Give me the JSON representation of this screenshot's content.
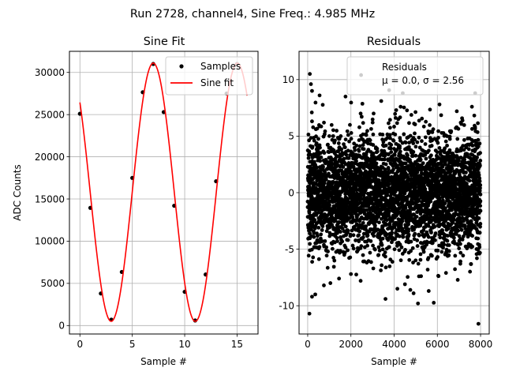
{
  "figure": {
    "suptitle": "Run 2728, channel4, Sine Freq.: 4.985 MHz"
  },
  "chart_data": [
    {
      "type": "scatter",
      "title": "Sine Fit",
      "xlabel": "Sample #",
      "ylabel": "ADC Counts",
      "xlim": [
        -1.0,
        17.0
      ],
      "ylim": [
        -1000,
        32500
      ],
      "xticks": [
        0,
        5,
        10,
        15
      ],
      "yticks": [
        0,
        5000,
        10000,
        15000,
        20000,
        25000,
        30000
      ],
      "grid": true,
      "legend": {
        "placement": "top-right",
        "entries": [
          "Samples",
          "Sine fit"
        ]
      },
      "series": [
        {
          "name": "Samples",
          "kind": "points",
          "color": "#000000",
          "x": [
            0,
            1,
            2,
            3,
            4,
            5,
            6,
            7,
            8,
            9,
            10,
            11,
            12,
            13,
            14,
            15
          ],
          "y": [
            25100,
            13950,
            3800,
            700,
            6350,
            17500,
            27650,
            31000,
            25300,
            14200,
            4000,
            600,
            6050,
            17100,
            27500,
            31000
          ]
        },
        {
          "name": "Sine fit",
          "kind": "line",
          "color": "#ff0000",
          "x_range": [
            0,
            15.95
          ],
          "offset": 15800,
          "amplitude": 15300,
          "period_samples": 8.024,
          "peak_at_sample": 7.0
        }
      ]
    },
    {
      "type": "scatter",
      "title": "Residuals",
      "xlabel": "Sample #",
      "ylabel": "",
      "xlim": [
        -400,
        8400
      ],
      "ylim": [
        -12.5,
        12.5
      ],
      "xticks": [
        0,
        2000,
        4000,
        6000,
        8000
      ],
      "yticks": [
        -10,
        -5,
        0,
        5,
        10
      ],
      "grid": true,
      "legend": {
        "placement": "top-right",
        "entries": [
          "Residuals",
          "μ = 0.0, σ = 2.56"
        ]
      },
      "series": [
        {
          "name": "Residuals",
          "kind": "points",
          "color": "#000000",
          "n_points": 8000,
          "mean": 0.0,
          "std": 2.56,
          "x_range": [
            0,
            7999
          ],
          "outliers": [
            [
              100,
              10.5
            ],
            [
              2470,
              10.4
            ],
            [
              7900,
              -11.6
            ],
            [
              80,
              -10.7
            ],
            [
              3600,
              -9.4
            ],
            [
              4400,
              8.8
            ],
            [
              1750,
              8.5
            ],
            [
              150,
              9.6
            ],
            [
              200,
              -9.2
            ],
            [
              4750,
              -8.6
            ],
            [
              350,
              -9.0
            ],
            [
              7600,
              7.6
            ],
            [
              4900,
              -8.9
            ],
            [
              1050,
              -8.0
            ],
            [
              1450,
              -7.6
            ],
            [
              2450,
              -7.8
            ],
            [
              4150,
              -8.5
            ],
            [
              5150,
              -7.4
            ],
            [
              5600,
              -8.7
            ],
            [
              6400,
              -7.1
            ],
            [
              3050,
              7.0
            ],
            [
              550,
              8.6
            ],
            [
              6100,
              7.8
            ],
            [
              6900,
              7.2
            ],
            [
              4300,
              7.6
            ],
            [
              200,
              9.0
            ],
            [
              7750,
              8.8
            ],
            [
              750,
              -8.2
            ],
            [
              4500,
              -8.1
            ],
            [
              2000,
              -7.2
            ]
          ]
        }
      ]
    }
  ]
}
